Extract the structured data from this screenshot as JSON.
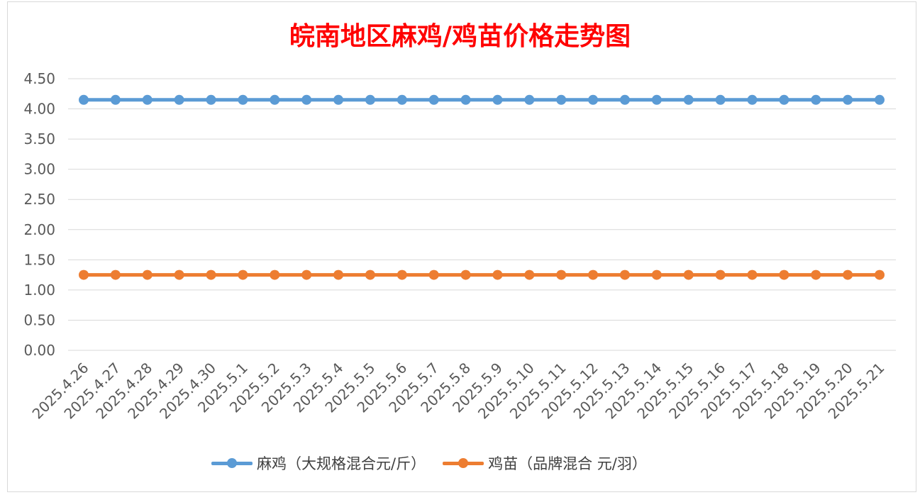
{
  "chart_data": {
    "type": "line",
    "title": "皖南地区麻鸡/鸡苗价格走势图",
    "xlabel": "",
    "ylabel": "",
    "categories": [
      "2025.4.26",
      "2025.4.27",
      "2025.4.28",
      "2025.4.29",
      "2025.4.30",
      "2025.5.1",
      "2025.5.2",
      "2025.5.3",
      "2025.5.4",
      "2025.5.5",
      "2025.5.6",
      "2025.5.7",
      "2025.5.8",
      "2025.5.9",
      "2025.5.10",
      "2025.5.11",
      "2025.5.12",
      "2025.5.13",
      "2025.5.14",
      "2025.5.15",
      "2025.5.16",
      "2025.5.17",
      "2025.5.18",
      "2025.5.19",
      "2025.5.20",
      "2025.5.21"
    ],
    "ylim": [
      0,
      4.5
    ],
    "yticks": [
      "0.00",
      "0.50",
      "1.00",
      "1.50",
      "2.00",
      "2.50",
      "3.00",
      "3.50",
      "4.00",
      "4.50"
    ],
    "grid": true,
    "legend_position": "bottom",
    "series": [
      {
        "name": "麻鸡（大规格混合元/斤）",
        "color": "#5b9bd5",
        "values": [
          4.15,
          4.15,
          4.15,
          4.15,
          4.15,
          4.15,
          4.15,
          4.15,
          4.15,
          4.15,
          4.15,
          4.15,
          4.15,
          4.15,
          4.15,
          4.15,
          4.15,
          4.15,
          4.15,
          4.15,
          4.15,
          4.15,
          4.15,
          4.15,
          4.15,
          4.15
        ]
      },
      {
        "name": "鸡苗（品牌混合 元/羽）",
        "color": "#ed7d31",
        "values": [
          1.25,
          1.25,
          1.25,
          1.25,
          1.25,
          1.25,
          1.25,
          1.25,
          1.25,
          1.25,
          1.25,
          1.25,
          1.25,
          1.25,
          1.25,
          1.25,
          1.25,
          1.25,
          1.25,
          1.25,
          1.25,
          1.25,
          1.25,
          1.25,
          1.25,
          1.25
        ]
      }
    ]
  }
}
